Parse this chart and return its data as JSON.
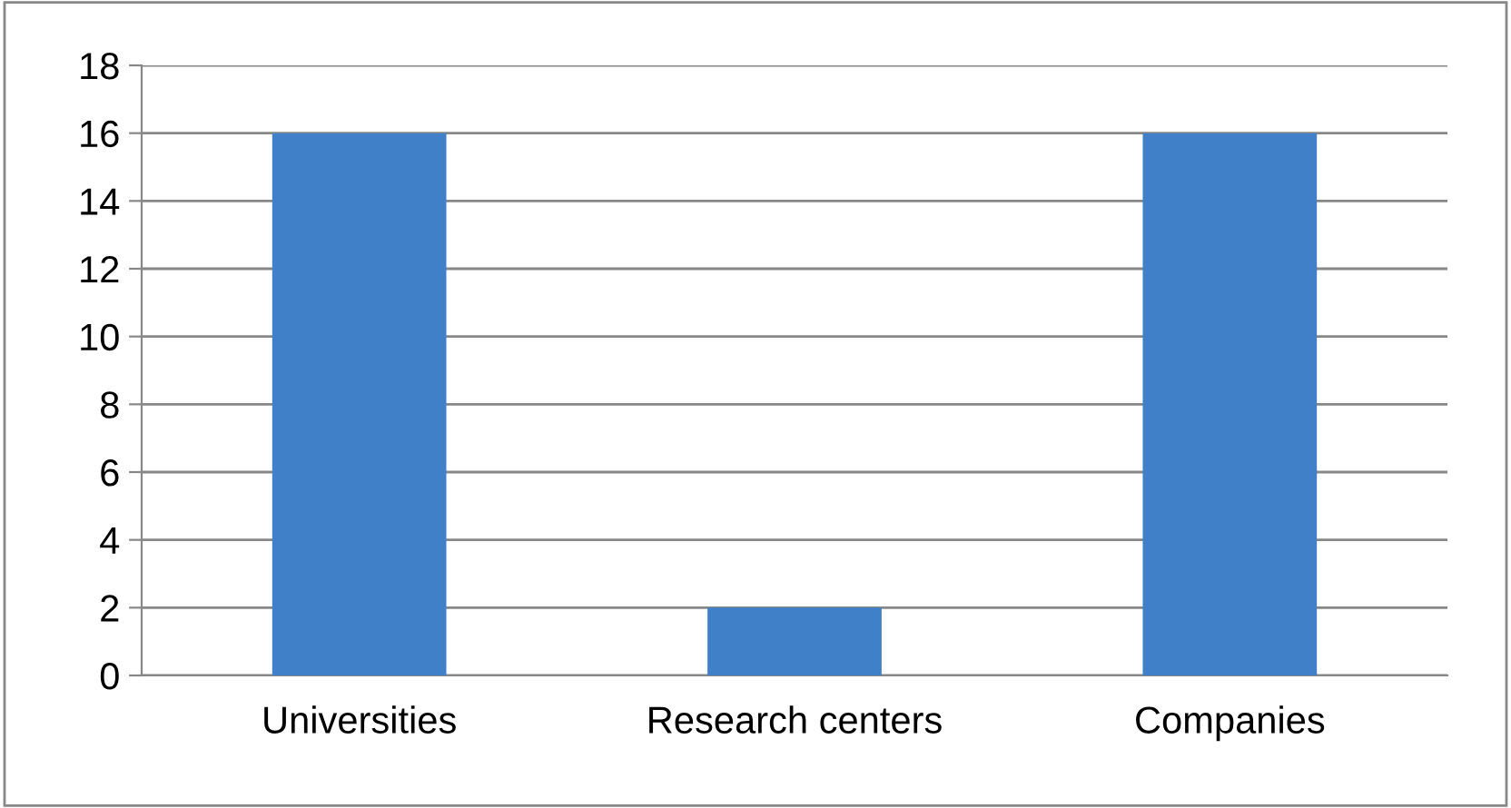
{
  "chart_data": {
    "type": "bar",
    "categories": [
      "Universities",
      "Research centers",
      "Companies"
    ],
    "values": [
      16,
      2,
      16
    ],
    "color": "#3f80c8",
    "ylim": [
      0,
      18
    ],
    "yticks": [
      0,
      2,
      4,
      6,
      8,
      10,
      12,
      14,
      16,
      18
    ],
    "grid": "y",
    "legend": false
  }
}
